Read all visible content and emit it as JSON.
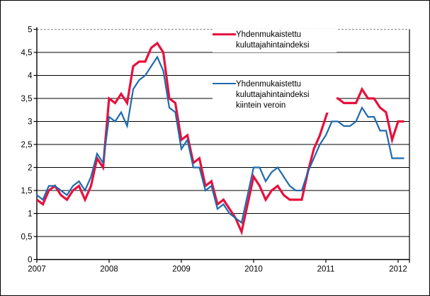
{
  "legend": {
    "items": [
      {
        "label": "Yhdenmukaistettu kuluttajahintaindeksi"
      },
      {
        "label": "Yhdenmukaistettu kuluttajahintaindeksi kiintein veroin"
      }
    ]
  },
  "chart_data": {
    "type": "line",
    "title": "",
    "xlabel": "",
    "ylabel": "",
    "x_start": "2007-01",
    "x_end": "2012-02",
    "x_tick_labels": [
      "2007",
      "2008",
      "2009",
      "2010",
      "2011",
      "2012"
    ],
    "y_tick_labels": [
      "0",
      "0,5",
      "1",
      "1,5",
      "2",
      "2,5",
      "3",
      "3,5",
      "4",
      "4,5",
      "5"
    ],
    "ylim": [
      0,
      5
    ],
    "y_step": 0.5,
    "grid": "horizontal",
    "legend_position": "top-right-inside",
    "colors": {
      "hicp": "#e8103c",
      "hicp_ct": "#1f6aad",
      "grid": "#000000",
      "top_grid": "#9a9a9a"
    },
    "series": [
      {
        "name": "Yhdenmukaistettu kuluttajahintaindeksi",
        "color": "#e8103c",
        "stroke_width": 3.2,
        "values": [
          1.3,
          1.2,
          1.5,
          1.6,
          1.4,
          1.3,
          1.5,
          1.6,
          1.3,
          1.6,
          2.2,
          2.0,
          3.5,
          3.4,
          3.6,
          3.4,
          4.2,
          4.3,
          4.3,
          4.6,
          4.7,
          4.5,
          3.5,
          3.4,
          2.6,
          2.7,
          2.1,
          2.2,
          1.6,
          1.7,
          1.2,
          1.3,
          1.1,
          0.9,
          0.6,
          1.2,
          1.8,
          1.6,
          1.3,
          1.5,
          1.6,
          1.4,
          1.3,
          1.3,
          1.3,
          1.9,
          2.4,
          2.7,
          3.1,
          3.5,
          3.5,
          3.4,
          3.4,
          3.4,
          3.7,
          3.5,
          3.5,
          3.3,
          3.2,
          2.6,
          3.0,
          3.0
        ]
      },
      {
        "name": "Yhdenmukaistettu kuluttajahintaindeksi kiintein veroin",
        "color": "#1f6aad",
        "stroke_width": 2.2,
        "values": [
          1.4,
          1.3,
          1.6,
          1.6,
          1.5,
          1.4,
          1.6,
          1.7,
          1.5,
          1.8,
          2.3,
          2.1,
          3.1,
          3.0,
          3.2,
          2.9,
          3.7,
          3.9,
          4.0,
          4.2,
          4.4,
          4.1,
          3.3,
          3.2,
          2.4,
          2.6,
          2.0,
          2.0,
          1.5,
          1.6,
          1.1,
          1.2,
          1.0,
          0.9,
          0.8,
          1.4,
          2.0,
          2.0,
          1.7,
          1.9,
          2.0,
          1.8,
          1.6,
          1.5,
          1.5,
          1.9,
          2.2,
          2.5,
          2.7,
          3.0,
          3.0,
          2.9,
          2.9,
          3.0,
          3.3,
          3.1,
          3.1,
          2.8,
          2.8,
          2.2,
          2.2,
          2.2
        ]
      }
    ]
  }
}
